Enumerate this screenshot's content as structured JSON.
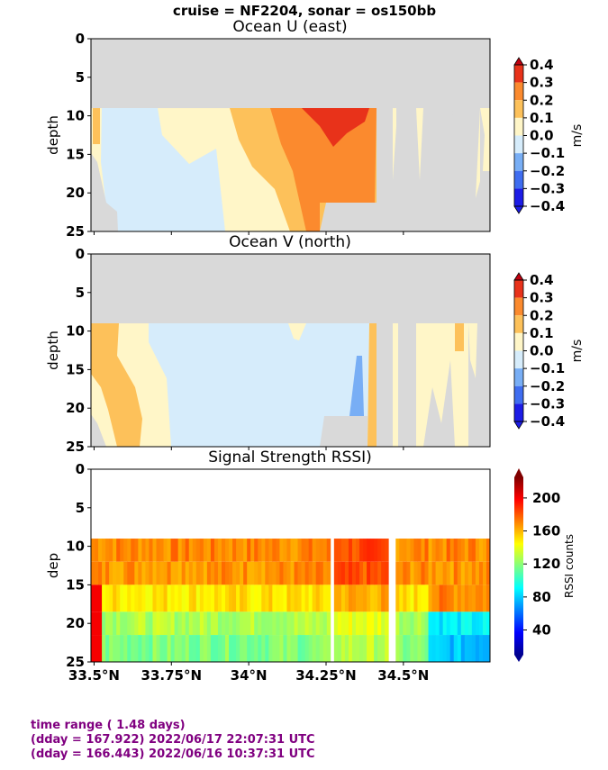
{
  "suptitle": "cruise = NF2204,  sonar = os150bb",
  "colors": {
    "land_gray": "#d9d9d9",
    "footer_purple": "#800080",
    "u_levels": [
      "#1c1ce6",
      "#3f6df0",
      "#78aef5",
      "#d6ecfb",
      "#fff6c8",
      "#fdc15a",
      "#fb8a2e",
      "#e8321a",
      "#c0000f"
    ],
    "rssi_scale": [
      "#00008f",
      "#0000ff",
      "#0080ff",
      "#00ffff",
      "#80ff80",
      "#ffff00",
      "#ff8000",
      "#ff0000",
      "#800000"
    ]
  },
  "chart_data": [
    {
      "type": "heatmap",
      "title": "Ocean U (east)",
      "ylabel": "depth",
      "ylim": [
        25,
        0
      ],
      "yticks": [
        "0",
        "5",
        "10",
        "15",
        "20",
        "25"
      ],
      "xlim": [
        33.49,
        34.78
      ],
      "xticks": [
        33.5,
        33.75,
        34.0,
        34.25,
        34.5
      ],
      "xticklabels_shown": false,
      "colorbar": {
        "label": "m/s",
        "ticks": [
          "0.4",
          "0.3",
          "0.2",
          "0.1",
          "0.0",
          "−0.1",
          "−0.2",
          "−0.3",
          "−0.4"
        ],
        "range": [
          -0.4,
          0.4
        ]
      },
      "data_top_depth": 9
    },
    {
      "type": "heatmap",
      "title": "Ocean V (north)",
      "ylabel": "depth",
      "ylim": [
        25,
        0
      ],
      "yticks": [
        "0",
        "5",
        "10",
        "15",
        "20",
        "25"
      ],
      "xlim": [
        33.49,
        34.78
      ],
      "xticks": [
        33.5,
        33.75,
        34.0,
        34.25,
        34.5
      ],
      "xticklabels_shown": false,
      "colorbar": {
        "label": "m/s",
        "ticks": [
          "0.4",
          "0.3",
          "0.2",
          "0.1",
          "0.0",
          "−0.1",
          "−0.2",
          "−0.3",
          "−0.4"
        ],
        "range": [
          -0.4,
          0.4
        ]
      },
      "data_top_depth": 9
    },
    {
      "type": "heatmap",
      "title": "Signal Strength RSSI)",
      "ylabel": "dep",
      "ylim": [
        25,
        0
      ],
      "yticks": [
        "0",
        "5",
        "10",
        "15",
        "20",
        "25"
      ],
      "xlim": [
        33.49,
        34.78
      ],
      "xticks": [
        33.5,
        33.75,
        34.0,
        34.25,
        34.5
      ],
      "xticklabels": [
        "33.5°N",
        "33.75°N",
        "34°N",
        "34.25°N",
        "34.5°N"
      ],
      "colorbar": {
        "label": "RSSI counts",
        "ticks": [
          "200",
          "160",
          "120",
          "80",
          "40"
        ],
        "range": [
          10,
          225
        ]
      },
      "data_top_depth": 9,
      "depth_rows": [
        10.5,
        13.5,
        17,
        20,
        23.5
      ],
      "row_rssi_means": [
        170,
        168,
        150,
        128,
        118
      ],
      "gaps_lon": [
        [
          34.26,
          34.28
        ],
        [
          34.45,
          34.47
        ]
      ]
    }
  ],
  "footer": {
    "line1": "time range ( 1.48 days)",
    "line2": "(dday = 167.922) 2022/06/17 22:07:31 UTC",
    "line3": "(dday = 166.443) 2022/06/16 10:37:31 UTC"
  }
}
